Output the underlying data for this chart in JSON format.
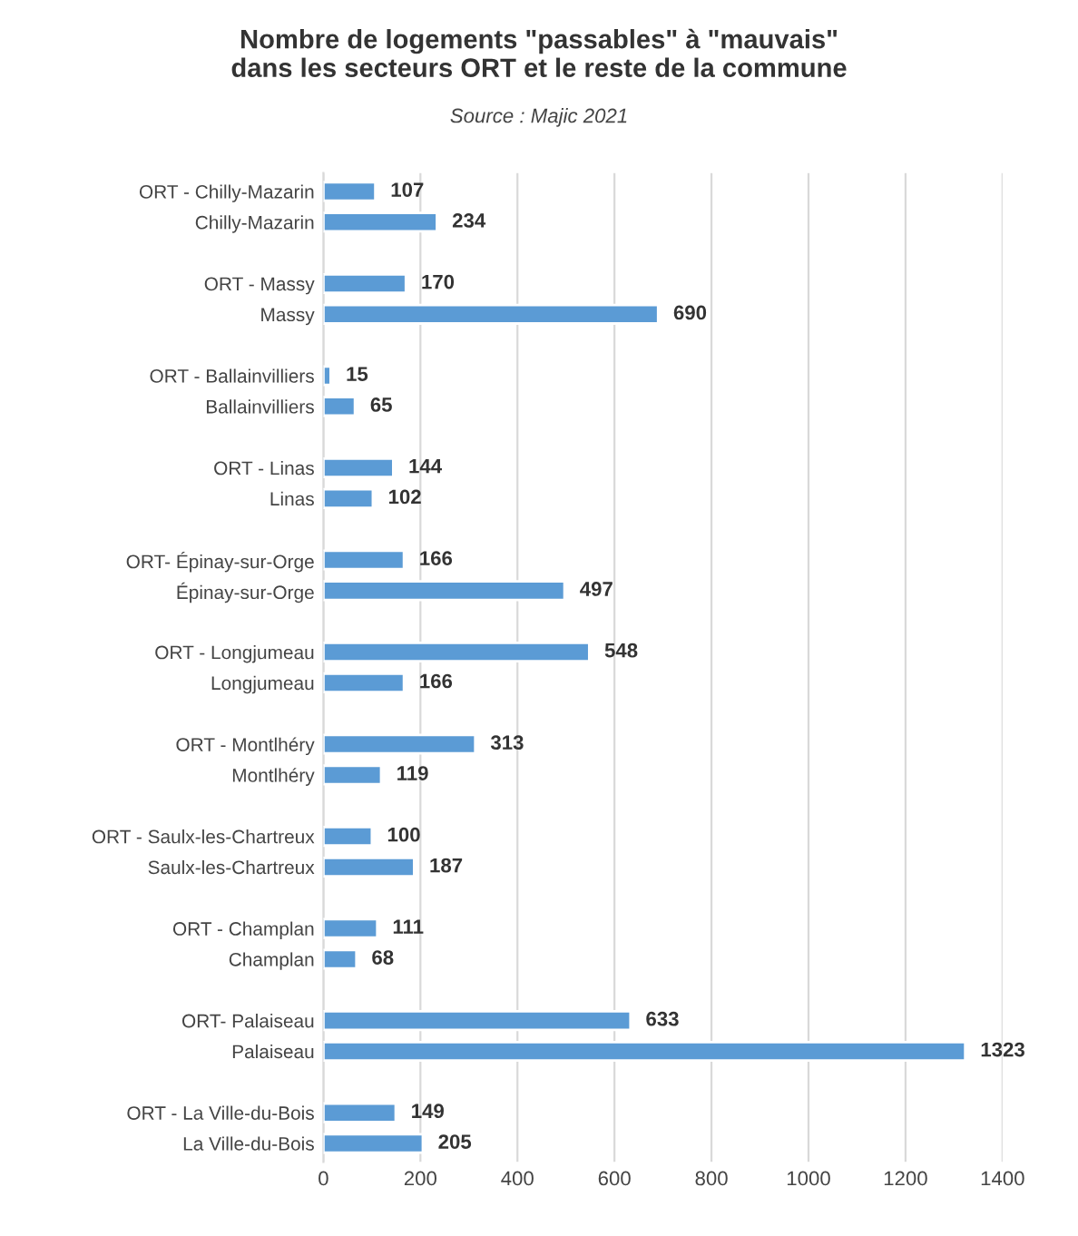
{
  "chart_data": {
    "type": "bar",
    "orientation": "horizontal",
    "title": "Nombre de logements \"passables\" à \"mauvais\"\ndans les secteurs ORT et le reste de la commune",
    "subtitle": "Source : Majic 2021",
    "categories": [
      "ORT - Chilly-Mazarin",
      "Chilly-Mazarin",
      null,
      "ORT - Massy",
      "Massy",
      null,
      "ORT - Ballainvilliers",
      "Ballainvilliers",
      null,
      "ORT - Linas",
      "Linas",
      null,
      "ORT- Épinay-sur-Orge",
      "Épinay-sur-Orge",
      null,
      "ORT - Longjumeau",
      "Longjumeau",
      null,
      "ORT - Montlhéry",
      "Montlhéry",
      null,
      "ORT - Saulx-les-Chartreux",
      "Saulx-les-Chartreux",
      null,
      "ORT - Champlan",
      "Champlan",
      null,
      "ORT- Palaiseau",
      "Palaiseau",
      null,
      "ORT - La Ville-du-Bois",
      "La Ville-du-Bois"
    ],
    "values": [
      107,
      234,
      null,
      170,
      690,
      null,
      15,
      65,
      null,
      144,
      102,
      null,
      166,
      497,
      null,
      548,
      166,
      null,
      313,
      119,
      null,
      100,
      187,
      null,
      111,
      68,
      null,
      633,
      1323,
      null,
      149,
      205
    ],
    "color": "#5b9bd5",
    "xlim": [
      0,
      1400
    ],
    "xticks": [
      0,
      200,
      400,
      600,
      800,
      1000,
      1200,
      1400
    ],
    "grid": "x",
    "data_labels": true
  }
}
